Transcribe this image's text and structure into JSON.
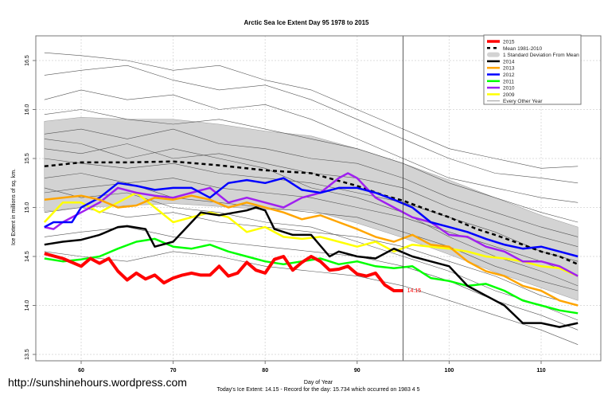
{
  "chart_data": {
    "type": "line",
    "title": "Arctic Sea Ice Extent Day 95 1978 to 2015",
    "xlabel": "Day of Year",
    "ylabel": "Ice Extent in millions of sq. km.",
    "subtitle": "Today's Ice Extent: 14.15  - Record for the day: 15.734 which occurred on 1983 4 5",
    "xlim": [
      55,
      115
    ],
    "ylim": [
      13.45,
      16.8
    ],
    "xticks": [
      "60",
      "70",
      "80",
      "90",
      "100",
      "110"
    ],
    "yticks": [
      "13.5",
      "14.0",
      "14.5",
      "15.0",
      "15.5",
      "16.0",
      "16.5"
    ],
    "grid": true,
    "legend_placement": "top-right",
    "current_day": 95,
    "current_value_label": "14.15",
    "legend": [
      {
        "label": "2015",
        "color": "#ff0000",
        "style": "thick"
      },
      {
        "label": "Mean 1981-2010",
        "color": "#000000",
        "style": "dashed"
      },
      {
        "label": "1 Standard Deviation From Mean",
        "color": "#d3d3d3",
        "style": "band"
      },
      {
        "label": "2014",
        "color": "#000000",
        "style": "line"
      },
      {
        "label": "2013",
        "color": "#ffa500",
        "style": "line"
      },
      {
        "label": "2012",
        "color": "#0000ff",
        "style": "line"
      },
      {
        "label": "2011",
        "color": "#00ff00",
        "style": "line"
      },
      {
        "label": "2010",
        "color": "#a020f0",
        "style": "line"
      },
      {
        "label": "2009",
        "color": "#ffff00",
        "style": "line"
      },
      {
        "label": "Every Other Year",
        "color": "#999999",
        "style": "thin"
      }
    ],
    "std_band": {
      "x": [
        56,
        60,
        65,
        70,
        75,
        80,
        85,
        90,
        95,
        100,
        105,
        110,
        114
      ],
      "upper": [
        15.88,
        15.92,
        15.9,
        15.9,
        15.85,
        15.78,
        15.73,
        15.6,
        15.45,
        15.28,
        15.1,
        14.92,
        14.8
      ],
      "lower": [
        14.96,
        15.0,
        15.02,
        15.04,
        15.01,
        14.98,
        14.97,
        14.84,
        14.69,
        14.52,
        14.34,
        14.18,
        14.05
      ]
    },
    "mean": {
      "x": [
        56,
        60,
        65,
        70,
        75,
        80,
        85,
        90,
        93,
        95,
        97,
        100,
        103,
        105,
        108,
        110,
        112,
        114
      ],
      "y": [
        15.42,
        15.46,
        15.46,
        15.47,
        15.43,
        15.38,
        15.35,
        15.22,
        15.12,
        15.07,
        15.0,
        14.9,
        14.78,
        14.72,
        14.62,
        14.55,
        14.5,
        14.42
      ]
    },
    "other_years": {
      "x": [
        56,
        60,
        65,
        70,
        75,
        80,
        85,
        90,
        95,
        100,
        105,
        110,
        114
      ],
      "lines": [
        [
          16.58,
          16.55,
          16.5,
          16.4,
          16.45,
          16.3,
          16.2,
          16.0,
          15.8,
          15.6,
          15.5,
          15.4,
          15.42
        ],
        [
          16.35,
          16.4,
          16.45,
          16.3,
          16.2,
          16.25,
          16.1,
          15.9,
          15.7,
          15.5,
          15.35,
          15.3,
          15.25
        ],
        [
          16.1,
          16.2,
          16.1,
          16.15,
          16.0,
          16.05,
          15.9,
          15.7,
          15.5,
          15.3,
          15.2,
          15.1,
          15.05
        ],
        [
          15.95,
          16.0,
          15.9,
          15.85,
          15.9,
          15.8,
          15.7,
          15.6,
          15.45,
          15.25,
          15.1,
          14.95,
          14.85
        ],
        [
          15.75,
          15.8,
          15.7,
          15.8,
          15.65,
          15.6,
          15.5,
          15.45,
          15.3,
          15.1,
          14.95,
          14.8,
          14.7
        ],
        [
          15.6,
          15.55,
          15.65,
          15.5,
          15.55,
          15.45,
          15.35,
          15.3,
          15.2,
          15.0,
          14.85,
          14.7,
          14.6
        ],
        [
          15.5,
          15.45,
          15.4,
          15.45,
          15.35,
          15.3,
          15.25,
          15.15,
          15.05,
          14.9,
          14.75,
          14.55,
          14.45
        ],
        [
          15.3,
          15.35,
          15.25,
          15.3,
          15.2,
          15.15,
          15.1,
          15.0,
          14.9,
          14.75,
          14.6,
          14.45,
          14.3
        ],
        [
          15.15,
          15.2,
          15.25,
          15.1,
          15.05,
          15.0,
          14.95,
          14.9,
          14.75,
          14.6,
          14.4,
          14.25,
          14.15
        ],
        [
          14.95,
          15.0,
          14.9,
          14.95,
          14.85,
          14.8,
          14.75,
          14.7,
          14.6,
          14.45,
          14.3,
          14.1,
          14.0
        ],
        [
          14.7,
          14.75,
          14.8,
          14.7,
          14.65,
          14.6,
          14.55,
          14.5,
          14.4,
          14.25,
          14.05,
          13.9,
          13.75
        ],
        [
          14.55,
          14.5,
          14.45,
          14.55,
          14.5,
          14.4,
          14.35,
          14.3,
          14.2,
          14.05,
          13.9,
          13.75,
          13.6
        ],
        [
          15.7,
          15.65,
          15.5,
          15.6,
          15.5,
          15.4,
          15.2,
          15.1,
          14.95,
          14.7,
          14.5,
          14.35,
          14.2
        ],
        [
          15.2,
          15.1,
          15.15,
          15.0,
          14.95,
          14.85,
          14.8,
          14.65,
          14.5,
          14.35,
          14.15,
          14.0,
          13.85
        ]
      ]
    },
    "series": [
      {
        "name": "2015",
        "color": "#ff0000",
        "width": 4,
        "x": [
          56,
          58,
          60,
          61,
          62,
          63,
          64,
          65,
          66,
          67,
          68,
          69,
          70,
          71,
          72,
          73,
          74,
          75,
          76,
          77,
          78,
          79,
          80,
          81,
          82,
          83,
          84,
          85,
          86,
          87,
          88,
          89,
          90,
          91,
          92,
          93,
          94,
          95
        ],
        "y": [
          14.53,
          14.48,
          14.4,
          14.48,
          14.43,
          14.48,
          14.35,
          14.26,
          14.33,
          14.27,
          14.31,
          14.23,
          14.28,
          14.31,
          14.33,
          14.31,
          14.31,
          14.4,
          14.3,
          14.33,
          14.44,
          14.36,
          14.33,
          14.47,
          14.5,
          14.36,
          14.44,
          14.5,
          14.45,
          14.36,
          14.37,
          14.4,
          14.32,
          14.3,
          14.33,
          14.21,
          14.15,
          14.15
        ]
      },
      {
        "name": "2014",
        "color": "#000000",
        "width": 2.5,
        "x": [
          56,
          58,
          60,
          62,
          64,
          65,
          67,
          68,
          70,
          72,
          73,
          75,
          78,
          79,
          80,
          81,
          83,
          85,
          87,
          88,
          90,
          92,
          94,
          96,
          98,
          100,
          102,
          104,
          106,
          108,
          110,
          112,
          114
        ],
        "y": [
          14.62,
          14.65,
          14.67,
          14.72,
          14.8,
          14.81,
          14.78,
          14.6,
          14.65,
          14.85,
          14.95,
          14.92,
          14.97,
          15.0,
          14.97,
          14.78,
          14.72,
          14.72,
          14.5,
          14.55,
          14.5,
          14.48,
          14.58,
          14.5,
          14.45,
          14.4,
          14.2,
          14.1,
          14.0,
          13.82,
          13.82,
          13.78,
          13.82
        ]
      },
      {
        "name": "2013",
        "color": "#ffa500",
        "width": 2.5,
        "x": [
          56,
          60,
          62,
          64,
          66,
          68,
          70,
          72,
          74,
          76,
          78,
          80,
          82,
          84,
          86,
          88,
          90,
          92,
          94,
          96,
          98,
          100,
          102,
          104,
          106,
          108,
          110,
          112,
          114
        ],
        "y": [
          15.08,
          15.12,
          15.08,
          15.0,
          15.02,
          15.1,
          15.08,
          15.12,
          15.08,
          15.0,
          15.05,
          15.0,
          14.95,
          14.88,
          14.92,
          14.85,
          14.78,
          14.7,
          14.65,
          14.72,
          14.62,
          14.6,
          14.45,
          14.35,
          14.3,
          14.2,
          14.15,
          14.05,
          14.0
        ]
      },
      {
        "name": "2012",
        "color": "#0000ff",
        "width": 2.5,
        "x": [
          56,
          57,
          59,
          60,
          62,
          64,
          66,
          68,
          70,
          72,
          74,
          76,
          78,
          80,
          82,
          84,
          86,
          88,
          90,
          92,
          94,
          96,
          98,
          100,
          102,
          104,
          106,
          108,
          110,
          112,
          114
        ],
        "y": [
          14.8,
          14.85,
          14.85,
          15.0,
          15.1,
          15.25,
          15.22,
          15.18,
          15.2,
          15.2,
          15.1,
          15.25,
          15.28,
          15.25,
          15.3,
          15.18,
          15.15,
          15.2,
          15.2,
          15.15,
          15.08,
          15.0,
          14.85,
          14.8,
          14.75,
          14.68,
          14.62,
          14.58,
          14.6,
          14.55,
          14.5
        ]
      },
      {
        "name": "2011",
        "color": "#00ff00",
        "width": 2.5,
        "x": [
          56,
          58,
          60,
          62,
          64,
          66,
          68,
          70,
          72,
          74,
          76,
          78,
          80,
          82,
          84,
          86,
          88,
          90,
          92,
          94,
          96,
          98,
          100,
          102,
          104,
          106,
          108,
          110,
          112,
          114
        ],
        "y": [
          14.48,
          14.45,
          14.47,
          14.5,
          14.58,
          14.65,
          14.68,
          14.6,
          14.58,
          14.62,
          14.55,
          14.5,
          14.45,
          14.42,
          14.45,
          14.48,
          14.42,
          14.45,
          14.4,
          14.38,
          14.4,
          14.28,
          14.25,
          14.2,
          14.22,
          14.15,
          14.05,
          14.0,
          13.95,
          13.92
        ]
      },
      {
        "name": "2010",
        "color": "#a020f0",
        "width": 2.5,
        "x": [
          56,
          57,
          58,
          60,
          62,
          64,
          66,
          68,
          70,
          72,
          74,
          76,
          78,
          80,
          82,
          84,
          86,
          88,
          89,
          90,
          92,
          94,
          96,
          98,
          100,
          102,
          104,
          106,
          108,
          110,
          112,
          114
        ],
        "y": [
          14.8,
          14.78,
          14.85,
          14.95,
          15.05,
          15.2,
          15.15,
          15.12,
          15.1,
          15.15,
          15.2,
          15.05,
          15.1,
          15.05,
          15.0,
          15.1,
          15.15,
          15.3,
          15.35,
          15.3,
          15.1,
          15.0,
          14.9,
          14.85,
          14.72,
          14.7,
          14.6,
          14.55,
          14.45,
          14.45,
          14.4,
          14.3
        ]
      },
      {
        "name": "2009",
        "color": "#ffff00",
        "width": 2.5,
        "x": [
          56,
          58,
          60,
          62,
          64,
          66,
          68,
          70,
          72,
          74,
          76,
          78,
          80,
          82,
          84,
          86,
          88,
          90,
          92,
          94,
          96,
          98,
          100,
          102,
          104,
          106,
          108,
          110,
          112,
          114
        ],
        "y": [
          14.85,
          15.05,
          15.05,
          14.95,
          15.05,
          15.15,
          15.0,
          14.85,
          14.9,
          14.95,
          14.9,
          14.75,
          14.8,
          14.7,
          14.68,
          14.7,
          14.65,
          14.6,
          14.65,
          14.55,
          14.62,
          14.6,
          14.58,
          14.55,
          14.5,
          14.48,
          14.45,
          14.4,
          14.38,
          14.3
        ]
      }
    ]
  },
  "watermark": "http://sunshinehours.wordpress.com"
}
